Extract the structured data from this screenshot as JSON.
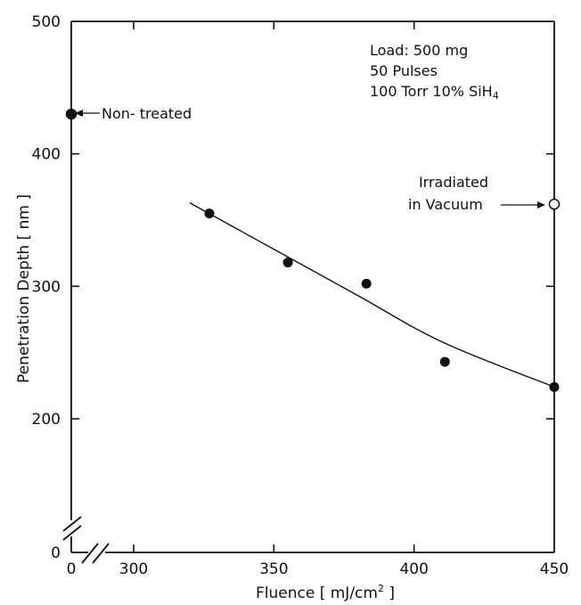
{
  "chart_data": {
    "type": "scatter",
    "xlabel": "Fluence [ mJ/cm",
    "xlabel_sup": "2",
    "xlabel_end": " ]",
    "ylabel": "Penetration Depth [ nm ]",
    "x_ticks": [
      {
        "value": 0,
        "label": "0"
      },
      {
        "value": 300,
        "label": "300"
      },
      {
        "value": 350,
        "label": "350"
      },
      {
        "value": 400,
        "label": "400"
      },
      {
        "value": 450,
        "label": "450"
      }
    ],
    "y_ticks": [
      {
        "value": 0,
        "label": "0"
      },
      {
        "value": 200,
        "label": "200"
      },
      {
        "value": 300,
        "label": "300"
      },
      {
        "value": 400,
        "label": "400"
      },
      {
        "value": 500,
        "label": "500"
      }
    ],
    "xlim": [
      275,
      450
    ],
    "ylim": [
      150,
      500
    ],
    "axis_breaks": "both axes broken near origin",
    "series": [
      {
        "marker": "filled-circle",
        "points": [
          {
            "x": 327,
            "y": 355
          },
          {
            "x": 355,
            "y": 318
          },
          {
            "x": 383,
            "y": 302
          },
          {
            "x": 411,
            "y": 243
          },
          {
            "x": 450,
            "y": 224
          }
        ]
      }
    ],
    "fit_curve": [
      [
        320,
        363
      ],
      [
        350,
        328
      ],
      [
        380,
        293
      ],
      [
        410,
        258
      ],
      [
        450,
        224
      ]
    ],
    "special_points": [
      {
        "x": 0,
        "y": 430,
        "marker": "filled-circle",
        "label": "Non- treated"
      },
      {
        "x": 450,
        "y": 362,
        "marker": "open-circle",
        "label_line1": "Irradiated",
        "label_line2": "in Vacuum"
      }
    ],
    "annotation": {
      "line1": "Load: 500 mg",
      "line2": "50 Pulses",
      "line3_prefix": "100 Torr 10% SiH",
      "line3_sub": "4"
    }
  }
}
